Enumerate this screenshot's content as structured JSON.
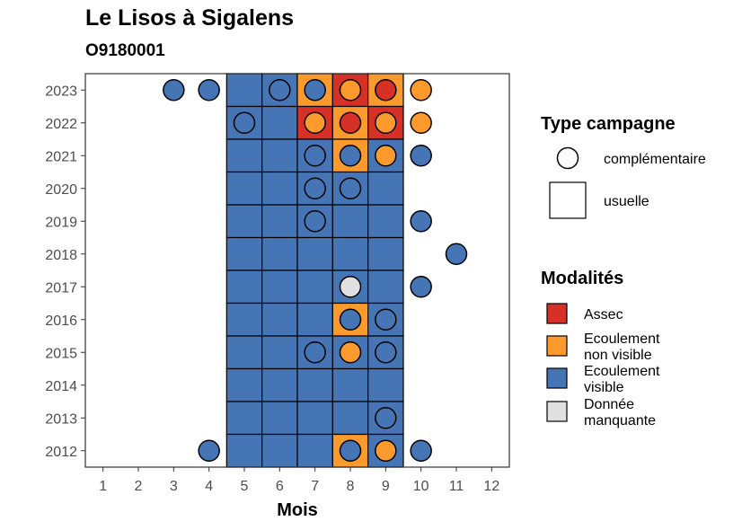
{
  "chart_data": {
    "type": "heatmap",
    "title": "Le Lisos à Sigalens",
    "subtitle": "O9180001",
    "xlabel": "Mois",
    "ylabel": "",
    "x_ticks": [
      1,
      2,
      3,
      4,
      5,
      6,
      7,
      8,
      9,
      10,
      11,
      12
    ],
    "xlim": [
      0.5,
      12.5
    ],
    "y_ticks": [
      2012,
      2013,
      2014,
      2015,
      2016,
      2017,
      2018,
      2019,
      2020,
      2021,
      2022,
      2023
    ],
    "grid": false,
    "colors": {
      "Assec": "#d73027",
      "Ecoulement non visible": "#fd9a2e",
      "Ecoulement visible": "#4575b4",
      "Donnée manquante": "#e0e0e0"
    },
    "legend_type": {
      "title": "Type campagne",
      "items": [
        {
          "label": "complémentaire",
          "shape": "circle"
        },
        {
          "label": "usuelle",
          "shape": "square"
        }
      ]
    },
    "legend_modalites": {
      "title": "Modalités",
      "items": [
        {
          "key": "Assec",
          "line1": "Assec",
          "line2": ""
        },
        {
          "key": "Ecoulement non visible",
          "line1": "Ecoulement",
          "line2": "non visible"
        },
        {
          "key": "Ecoulement visible",
          "line1": "Ecoulement",
          "line2": "visible"
        },
        {
          "key": "Donnée manquante",
          "line1": "Donnée",
          "line2": "manquante"
        }
      ]
    },
    "usuelle": [
      {
        "year": 2023,
        "values": {
          "5": "Ecoulement visible",
          "6": "Ecoulement visible",
          "7": "Ecoulement non visible",
          "8": "Assec",
          "9": "Ecoulement non visible"
        }
      },
      {
        "year": 2022,
        "values": {
          "5": "Ecoulement visible",
          "6": "Ecoulement visible",
          "7": "Assec",
          "8": "Ecoulement non visible",
          "9": "Assec"
        }
      },
      {
        "year": 2021,
        "values": {
          "5": "Ecoulement visible",
          "6": "Ecoulement visible",
          "7": "Ecoulement visible",
          "8": "Ecoulement non visible",
          "9": "Ecoulement visible"
        }
      },
      {
        "year": 2020,
        "values": {
          "5": "Ecoulement visible",
          "6": "Ecoulement visible",
          "7": "Ecoulement visible",
          "8": "Ecoulement visible",
          "9": "Ecoulement visible"
        }
      },
      {
        "year": 2019,
        "values": {
          "5": "Ecoulement visible",
          "6": "Ecoulement visible",
          "7": "Ecoulement visible",
          "8": "Ecoulement visible",
          "9": "Ecoulement visible"
        }
      },
      {
        "year": 2018,
        "values": {
          "5": "Ecoulement visible",
          "6": "Ecoulement visible",
          "7": "Ecoulement visible",
          "8": "Ecoulement visible",
          "9": "Ecoulement visible"
        }
      },
      {
        "year": 2017,
        "values": {
          "5": "Ecoulement visible",
          "6": "Ecoulement visible",
          "7": "Ecoulement visible",
          "8": "Ecoulement visible",
          "9": "Ecoulement visible"
        }
      },
      {
        "year": 2016,
        "values": {
          "5": "Ecoulement visible",
          "6": "Ecoulement visible",
          "7": "Ecoulement visible",
          "8": "Ecoulement non visible",
          "9": "Ecoulement visible"
        }
      },
      {
        "year": 2015,
        "values": {
          "5": "Ecoulement visible",
          "6": "Ecoulement visible",
          "7": "Ecoulement visible",
          "8": "Ecoulement visible",
          "9": "Ecoulement visible"
        }
      },
      {
        "year": 2014,
        "values": {
          "5": "Ecoulement visible",
          "6": "Ecoulement visible",
          "7": "Ecoulement visible",
          "8": "Ecoulement visible",
          "9": "Ecoulement visible"
        }
      },
      {
        "year": 2013,
        "values": {
          "5": "Ecoulement visible",
          "6": "Ecoulement visible",
          "7": "Ecoulement visible",
          "8": "Ecoulement visible",
          "9": "Ecoulement visible"
        }
      },
      {
        "year": 2012,
        "values": {
          "5": "Ecoulement visible",
          "6": "Ecoulement visible",
          "7": "Ecoulement visible",
          "8": "Ecoulement non visible",
          "9": "Ecoulement visible"
        }
      }
    ],
    "complementaire": [
      {
        "year": 2023,
        "month": 3,
        "value": "Ecoulement visible"
      },
      {
        "year": 2023,
        "month": 4,
        "value": "Ecoulement visible"
      },
      {
        "year": 2023,
        "month": 6,
        "value": "Ecoulement visible"
      },
      {
        "year": 2023,
        "month": 7,
        "value": "Ecoulement visible"
      },
      {
        "year": 2023,
        "month": 8,
        "value": "Ecoulement non visible"
      },
      {
        "year": 2023,
        "month": 9,
        "value": "Assec"
      },
      {
        "year": 2023,
        "month": 10,
        "value": "Ecoulement non visible"
      },
      {
        "year": 2022,
        "month": 5,
        "value": "Ecoulement visible"
      },
      {
        "year": 2022,
        "month": 7,
        "value": "Ecoulement non visible"
      },
      {
        "year": 2022,
        "month": 8,
        "value": "Assec"
      },
      {
        "year": 2022,
        "month": 9,
        "value": "Ecoulement non visible"
      },
      {
        "year": 2022,
        "month": 10,
        "value": "Ecoulement non visible"
      },
      {
        "year": 2021,
        "month": 7,
        "value": "Ecoulement visible"
      },
      {
        "year": 2021,
        "month": 8,
        "value": "Ecoulement visible"
      },
      {
        "year": 2021,
        "month": 9,
        "value": "Ecoulement non visible"
      },
      {
        "year": 2021,
        "month": 10,
        "value": "Ecoulement visible"
      },
      {
        "year": 2020,
        "month": 7,
        "value": "Ecoulement visible"
      },
      {
        "year": 2020,
        "month": 8,
        "value": "Ecoulement visible"
      },
      {
        "year": 2019,
        "month": 7,
        "value": "Ecoulement visible"
      },
      {
        "year": 2019,
        "month": 10,
        "value": "Ecoulement visible"
      },
      {
        "year": 2018,
        "month": 11,
        "value": "Ecoulement visible"
      },
      {
        "year": 2017,
        "month": 8,
        "value": "Donnée manquante"
      },
      {
        "year": 2017,
        "month": 10,
        "value": "Ecoulement visible"
      },
      {
        "year": 2016,
        "month": 8,
        "value": "Ecoulement visible"
      },
      {
        "year": 2016,
        "month": 9,
        "value": "Ecoulement visible"
      },
      {
        "year": 2015,
        "month": 7,
        "value": "Ecoulement visible"
      },
      {
        "year": 2015,
        "month": 8,
        "value": "Ecoulement non visible"
      },
      {
        "year": 2015,
        "month": 9,
        "value": "Ecoulement visible"
      },
      {
        "year": 2013,
        "month": 9,
        "value": "Ecoulement visible"
      },
      {
        "year": 2012,
        "month": 4,
        "value": "Ecoulement visible"
      },
      {
        "year": 2012,
        "month": 8,
        "value": "Ecoulement visible"
      },
      {
        "year": 2012,
        "month": 9,
        "value": "Ecoulement non visible"
      },
      {
        "year": 2012,
        "month": 10,
        "value": "Ecoulement visible"
      }
    ]
  }
}
